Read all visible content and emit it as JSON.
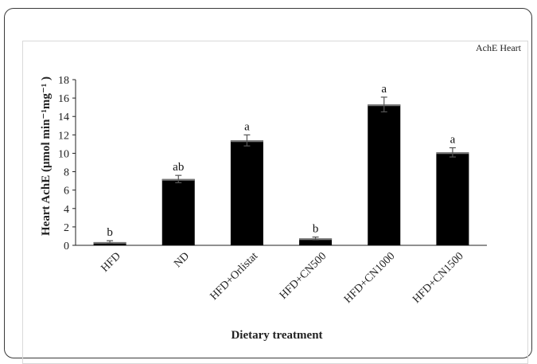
{
  "chart_data": {
    "type": "bar",
    "title": "",
    "legend_label": "AchE  Heart",
    "legend_position": "top-right",
    "xlabel": "Dietary treatment",
    "ylabel": "Heart AchE (μmol min⁻¹mg⁻¹ )",
    "ylim": [
      0,
      18
    ],
    "yticks": [
      0,
      2,
      4,
      6,
      8,
      10,
      12,
      14,
      16,
      18
    ],
    "grid": false,
    "categories": [
      "HFD",
      "ND",
      "HFD+Orlistat",
      "HFD+CN500",
      "HFD+CN1000",
      "HFD+CN1500"
    ],
    "series": [
      {
        "name": "AchE  Heart",
        "values": [
          0.35,
          7.2,
          11.4,
          0.75,
          15.3,
          10.1
        ],
        "errors": [
          0.15,
          0.4,
          0.6,
          0.15,
          0.8,
          0.5
        ],
        "significance": [
          "b",
          "ab",
          "a",
          "b",
          "a",
          "a"
        ],
        "color": "#000000"
      }
    ]
  }
}
